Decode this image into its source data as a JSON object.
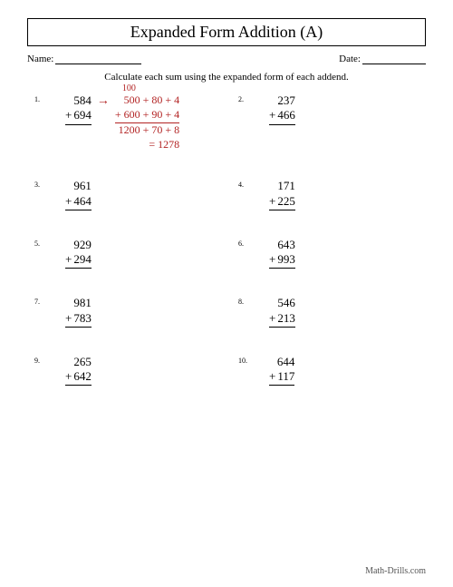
{
  "title": "Expanded Form Addition (A)",
  "name_label": "Name:",
  "date_label": "Date:",
  "instruction": "Calculate each sum using the expanded form of each addend.",
  "plus_sign": "+",
  "arrow_glyph": "→",
  "footer": "Math-Drills.com",
  "problems": [
    {
      "n": "1.",
      "a": "584",
      "b": "694"
    },
    {
      "n": "2.",
      "a": "237",
      "b": "466"
    },
    {
      "n": "3.",
      "a": "961",
      "b": "464"
    },
    {
      "n": "4.",
      "a": "171",
      "b": "225"
    },
    {
      "n": "5.",
      "a": "929",
      "b": "294"
    },
    {
      "n": "6.",
      "a": "643",
      "b": "993"
    },
    {
      "n": "7.",
      "a": "981",
      "b": "783"
    },
    {
      "n": "8.",
      "a": "546",
      "b": "213"
    },
    {
      "n": "9.",
      "a": "265",
      "b": "642"
    },
    {
      "n": "10.",
      "a": "644",
      "b": "117"
    }
  ],
  "example": {
    "carry": "100",
    "line1": "500 + 80 + 4",
    "line2": "+ 600 + 90 + 4",
    "line3": "1200 + 70 + 8",
    "line4": "= 1278"
  },
  "colors": {
    "example_color": "#b22222",
    "text_color": "#000000",
    "background": "#ffffff"
  }
}
